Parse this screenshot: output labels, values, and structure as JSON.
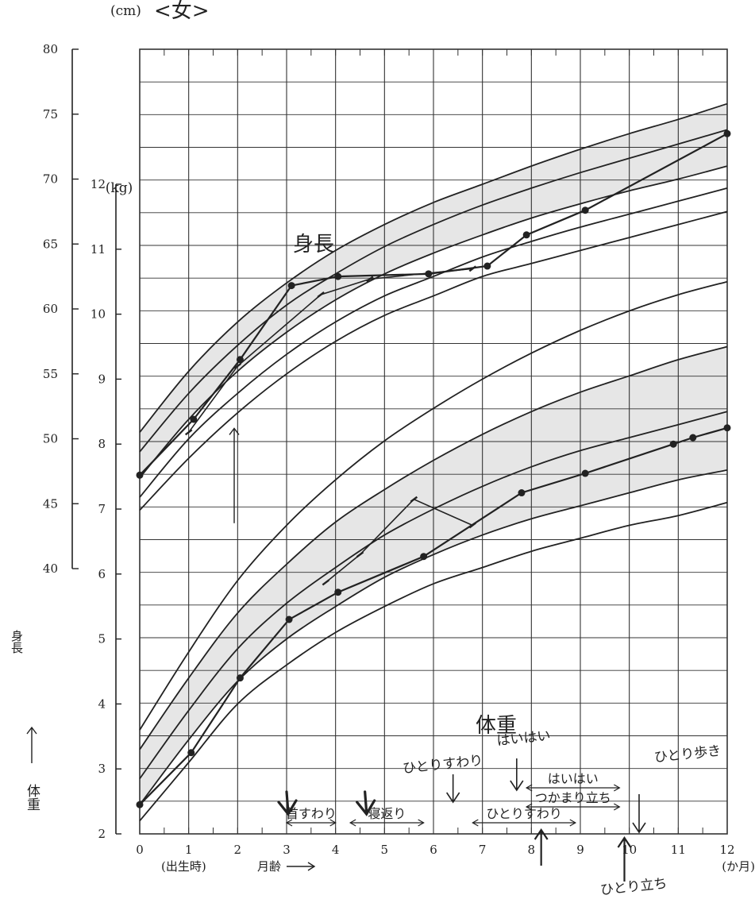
{
  "header": {
    "title": "<女>",
    "height_unit": "(cm)",
    "weight_unit": "(kg)"
  },
  "axis_titles": {
    "height": "身長",
    "weight": "体重",
    "x_label": "月齢",
    "x_start": "(出生時)",
    "x_unit": "(か月)"
  },
  "curve_labels": {
    "height": "身長",
    "weight": "体重"
  },
  "milestones": [
    {
      "label": "首すわり",
      "from": 3,
      "to": 4
    },
    {
      "label": "寝返り",
      "from": 4.3,
      "to": 5.8
    },
    {
      "label": "ひとりすわり",
      "from": 6.8,
      "to": 8.9
    },
    {
      "label": "はいはい",
      "from": 7.9,
      "to": 9.8
    },
    {
      "label": "つかまり立ち",
      "from": 7.9,
      "to": 9.8
    }
  ],
  "handwritten": [
    {
      "text": "ひとりすわり",
      "month": 6.4
    },
    {
      "text": "はいはい",
      "month": 7.7
    },
    {
      "text": "ひとり歩き",
      "month": 10.2
    },
    {
      "text": "ひとり立ち",
      "month": 10.1
    }
  ],
  "colors": {
    "line": "#222222",
    "band": "#e6e6e6",
    "grid": "#333333"
  },
  "chart_data": {
    "type": "line",
    "title": "<女>",
    "xlabel": "月齢",
    "x_ticks": [
      0,
      1,
      2,
      3,
      4,
      5,
      6,
      7,
      8,
      9,
      10,
      11,
      12
    ],
    "xlim": [
      0,
      12
    ],
    "height_axis": {
      "label": "身長",
      "unit": "(cm)",
      "ylim": [
        40,
        80
      ],
      "ticks": [
        40,
        45,
        50,
        55,
        60,
        65,
        70,
        75,
        80
      ]
    },
    "weight_axis": {
      "label": "体重",
      "unit": "(kg)",
      "ylim": [
        2,
        12
      ],
      "ticks": [
        2,
        3,
        4,
        5,
        6,
        7,
        8,
        9,
        10,
        11,
        12
      ]
    },
    "height_percentile_curves": [
      {
        "values": [
          [
            0,
            44.5
          ],
          [
            1,
            48.5
          ],
          [
            2,
            52
          ],
          [
            3,
            55
          ],
          [
            4,
            57.5
          ],
          [
            5,
            59.5
          ],
          [
            6,
            61
          ],
          [
            7,
            62.5
          ],
          [
            8,
            63.5
          ],
          [
            9,
            64.5
          ],
          [
            10,
            65.5
          ],
          [
            11,
            66.5
          ],
          [
            12,
            67.5
          ]
        ]
      },
      {
        "values": [
          [
            0,
            45.5
          ],
          [
            1,
            50
          ],
          [
            2,
            53.5
          ],
          [
            3,
            56.5
          ],
          [
            4,
            59
          ],
          [
            5,
            61
          ],
          [
            6,
            62.5
          ],
          [
            7,
            64
          ],
          [
            8,
            65.2
          ],
          [
            9,
            66.3
          ],
          [
            10,
            67.3
          ],
          [
            11,
            68.3
          ],
          [
            12,
            69.3
          ]
        ]
      },
      {
        "values": [
          [
            0,
            47
          ],
          [
            1,
            51.5
          ],
          [
            2,
            55.2
          ],
          [
            3,
            58.2
          ],
          [
            4,
            60.7
          ],
          [
            5,
            62.7
          ],
          [
            6,
            64.3
          ],
          [
            7,
            65.7
          ],
          [
            8,
            67
          ],
          [
            9,
            68.1
          ],
          [
            10,
            69.1
          ],
          [
            11,
            70
          ],
          [
            12,
            71
          ]
        ]
      },
      {
        "values": [
          [
            0,
            49
          ],
          [
            1,
            53.5
          ],
          [
            2,
            57.2
          ],
          [
            3,
            60.3
          ],
          [
            4,
            62.7
          ],
          [
            5,
            64.8
          ],
          [
            6,
            66.5
          ],
          [
            7,
            68
          ],
          [
            8,
            69.3
          ],
          [
            9,
            70.5
          ],
          [
            10,
            71.6
          ],
          [
            11,
            72.7
          ],
          [
            12,
            73.8
          ]
        ]
      },
      {
        "values": [
          [
            0,
            50.5
          ],
          [
            1,
            55.2
          ],
          [
            2,
            59
          ],
          [
            3,
            62
          ],
          [
            4,
            64.5
          ],
          [
            5,
            66.5
          ],
          [
            6,
            68.2
          ],
          [
            7,
            69.6
          ],
          [
            8,
            71
          ],
          [
            9,
            72.3
          ],
          [
            10,
            73.5
          ],
          [
            11,
            74.6
          ],
          [
            12,
            75.8
          ]
        ]
      }
    ],
    "height_band": {
      "lower_curve": 2,
      "upper_curve": 4
    },
    "weight_percentile_curves": [
      {
        "values": [
          [
            0,
            2.2
          ],
          [
            1,
            3.1
          ],
          [
            2,
            4
          ],
          [
            3,
            4.6
          ],
          [
            4,
            5.1
          ],
          [
            5,
            5.5
          ],
          [
            6,
            5.85
          ],
          [
            7,
            6.1
          ],
          [
            8,
            6.35
          ],
          [
            9,
            6.55
          ],
          [
            10,
            6.75
          ],
          [
            11,
            6.9
          ],
          [
            12,
            7.1
          ]
        ]
      },
      {
        "values": [
          [
            0,
            2.45
          ],
          [
            1,
            3.45
          ],
          [
            2,
            4.35
          ],
          [
            3,
            5.0
          ],
          [
            4,
            5.5
          ],
          [
            5,
            5.95
          ],
          [
            6,
            6.3
          ],
          [
            7,
            6.6
          ],
          [
            8,
            6.85
          ],
          [
            9,
            7.05
          ],
          [
            10,
            7.25
          ],
          [
            11,
            7.45
          ],
          [
            12,
            7.6
          ]
        ]
      },
      {
        "values": [
          [
            0,
            2.85
          ],
          [
            1,
            3.9
          ],
          [
            2,
            4.85
          ],
          [
            3,
            5.55
          ],
          [
            4,
            6.1
          ],
          [
            5,
            6.6
          ],
          [
            6,
            7.0
          ],
          [
            7,
            7.35
          ],
          [
            8,
            7.65
          ],
          [
            9,
            7.9
          ],
          [
            10,
            8.1
          ],
          [
            11,
            8.3
          ],
          [
            12,
            8.5
          ]
        ]
      },
      {
        "values": [
          [
            0,
            3.3
          ],
          [
            1,
            4.4
          ],
          [
            2,
            5.4
          ],
          [
            3,
            6.15
          ],
          [
            4,
            6.8
          ],
          [
            5,
            7.3
          ],
          [
            6,
            7.75
          ],
          [
            7,
            8.15
          ],
          [
            8,
            8.5
          ],
          [
            9,
            8.8
          ],
          [
            10,
            9.05
          ],
          [
            11,
            9.3
          ],
          [
            12,
            9.5
          ]
        ]
      },
      {
        "values": [
          [
            0,
            3.6
          ],
          [
            1,
            4.8
          ],
          [
            2,
            5.9
          ],
          [
            3,
            6.75
          ],
          [
            4,
            7.45
          ],
          [
            5,
            8.05
          ],
          [
            6,
            8.55
          ],
          [
            7,
            9.0
          ],
          [
            8,
            9.4
          ],
          [
            9,
            9.75
          ],
          [
            10,
            10.05
          ],
          [
            11,
            10.3
          ],
          [
            12,
            10.5
          ]
        ]
      }
    ],
    "weight_band": {
      "lower_curve": 1,
      "upper_curve": 3
    },
    "series": [
      {
        "axis": "height",
        "style": "dot",
        "values": [
          [
            0,
            47.2
          ],
          [
            1.1,
            51.5
          ],
          [
            2.05,
            56.1
          ],
          [
            3.1,
            61.8
          ],
          [
            4.05,
            62.5
          ],
          [
            5.9,
            62.7
          ],
          [
            7.1,
            63.3
          ],
          [
            7.9,
            65.7
          ],
          [
            9.1,
            67.6
          ],
          [
            12,
            73.5
          ]
        ]
      },
      {
        "axis": "height",
        "style": "tick",
        "values": [
          [
            1.0,
            50.5
          ],
          [
            2.0,
            55.6
          ],
          [
            3.7,
            61.1
          ],
          [
            4.7,
            62.3
          ],
          [
            6.8,
            63.1
          ]
        ]
      },
      {
        "axis": "weight",
        "style": "dot",
        "values": [
          [
            0,
            2.45
          ],
          [
            1.05,
            3.25
          ],
          [
            2.05,
            4.4
          ],
          [
            3.05,
            5.3
          ],
          [
            4.05,
            5.72
          ],
          [
            5.8,
            6.27
          ],
          [
            7.8,
            7.25
          ],
          [
            9.1,
            7.55
          ],
          [
            10.9,
            8.0
          ],
          [
            11.3,
            8.1
          ],
          [
            12,
            8.25
          ]
        ]
      },
      {
        "axis": "weight",
        "style": "tick",
        "values": [
          [
            3.8,
            5.87
          ],
          [
            4.5,
            6.3
          ],
          [
            5.6,
            7.15
          ],
          [
            6.8,
            6.75
          ]
        ]
      }
    ]
  }
}
